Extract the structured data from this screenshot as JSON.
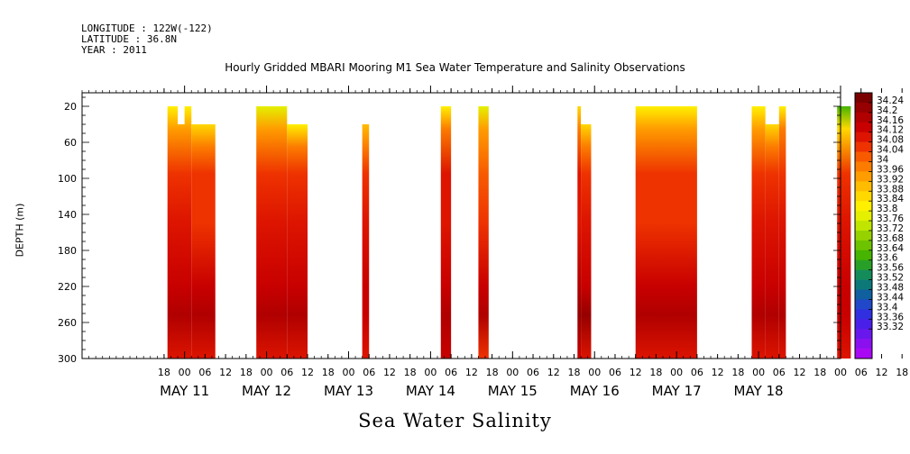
{
  "meta": {
    "longitude": "LONGITUDE : 122W(-122)",
    "latitude": "LATITUDE : 36.8N",
    "year": "YEAR : 2011"
  },
  "chart_data": {
    "type": "heatmap",
    "title": "Hourly Gridded MBARI Mooring M1 Sea Water Temperature and Salinity Observations",
    "subtitle": "Sea Water Salinity",
    "xlabel": "",
    "ylabel": "DEPTH (m)",
    "x_unit": "hours since May 11 00:00",
    "xlim": [
      -30,
      192
    ],
    "ylim": [
      300,
      5
    ],
    "y_ticks": [
      20,
      60,
      100,
      140,
      180,
      220,
      260,
      300
    ],
    "x_tick_hour_labels": [
      "18",
      "00",
      "06",
      "12",
      "18",
      "00",
      "06",
      "12",
      "18",
      "00",
      "06",
      "12",
      "18",
      "00",
      "06",
      "12",
      "18",
      "00",
      "06",
      "12",
      "18",
      "00",
      "06",
      "12",
      "18",
      "00",
      "06",
      "12",
      "18",
      "00",
      "06",
      "12",
      "18",
      "00",
      "06",
      "12",
      "18",
      "00",
      "06",
      "12"
    ],
    "x_day_labels": [
      "MAY 11",
      "MAY 12",
      "MAY 13",
      "MAY 14",
      "MAY 15",
      "MAY 16",
      "MAY 17",
      "MAY 18"
    ],
    "colorbar": {
      "ticks": [
        "34.24",
        "34.2",
        "34.16",
        "34.12",
        "34.08",
        "34.04",
        "34",
        "33.96",
        "33.92",
        "33.88",
        "33.84",
        "33.8",
        "33.76",
        "33.72",
        "33.68",
        "33.64",
        "33.6",
        "33.56",
        "33.52",
        "33.48",
        "33.44",
        "33.4",
        "33.36",
        "33.32"
      ],
      "colors": [
        "#7a0000",
        "#960000",
        "#b00000",
        "#c80000",
        "#dc1400",
        "#ee3200",
        "#f85a00",
        "#fc7c00",
        "#ff9c00",
        "#ffbc00",
        "#ffd800",
        "#fff000",
        "#e4f000",
        "#c0e600",
        "#96d200",
        "#6ec300",
        "#46b400",
        "#28a028",
        "#148c5a",
        "#0c7878",
        "#1060a0",
        "#2048c8",
        "#3030e0",
        "#4a20e8",
        "#6818ec",
        "#8a10f0",
        "#a808f4"
      ]
    },
    "series": [
      {
        "start_hour": -5,
        "end_hour": 2,
        "top_depth": 20,
        "notch": {
          "from_hour": -2,
          "to_hour": 0,
          "depth": 40
        },
        "value_top": 33.82,
        "value_mid": 34.1,
        "value_bottom": 34.18
      },
      {
        "start_hour": 2,
        "end_hour": 9,
        "top_depth": 40,
        "value_top": 33.86,
        "value_mid": 34.08,
        "value_bottom": 34.2
      },
      {
        "start_hour": 21,
        "end_hour": 30,
        "top_depth": 20,
        "value_top": 33.8,
        "value_mid": 34.1,
        "value_bottom": 34.2
      },
      {
        "start_hour": 30,
        "end_hour": 36,
        "top_depth": 40,
        "value_top": 33.84,
        "value_mid": 34.1,
        "value_bottom": 34.18
      },
      {
        "start_hour": 52,
        "end_hour": 54,
        "top_depth": 40,
        "value_top": 33.9,
        "value_mid": 34.1,
        "value_bottom": 34.16
      },
      {
        "start_hour": 75,
        "end_hour": 78,
        "top_depth": 20,
        "value_top": 33.82,
        "value_mid": 34.12,
        "value_bottom": 34.18
      },
      {
        "start_hour": 86,
        "end_hour": 89,
        "top_depth": 20,
        "value_top": 33.8,
        "value_mid": 34.06,
        "value_bottom": 34.2
      },
      {
        "start_hour": 115,
        "end_hour": 116,
        "top_depth": 20,
        "value_top": 33.86,
        "value_mid": 34.12,
        "value_bottom": 34.22
      },
      {
        "start_hour": 116,
        "end_hour": 119,
        "top_depth": 40,
        "value_top": 33.88,
        "value_mid": 34.1,
        "value_bottom": 34.22
      },
      {
        "start_hour": 132,
        "end_hour": 150,
        "top_depth": 20,
        "value_top": 33.84,
        "value_mid": 34.08,
        "value_bottom": 34.2
      },
      {
        "start_hour": 166,
        "end_hour": 170,
        "top_depth": 20,
        "value_top": 33.82,
        "value_mid": 34.1,
        "value_bottom": 34.2
      },
      {
        "start_hour": 170,
        "end_hour": 174,
        "top_depth": 40,
        "value_top": 33.86,
        "value_mid": 34.1,
        "value_bottom": 34.2
      },
      {
        "start_hour": 174,
        "end_hour": 176,
        "top_depth": 20,
        "value_top": 33.84,
        "value_mid": 34.1,
        "value_bottom": 34.2
      },
      {
        "start_hour": 191,
        "end_hour": 195,
        "top_depth": 20,
        "value_top": 33.64,
        "value_mid": 34.1,
        "value_bottom": 34.16
      }
    ]
  }
}
